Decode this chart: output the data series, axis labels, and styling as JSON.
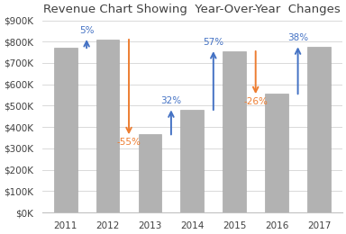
{
  "title": "Revenue Chart Showing  Year-Over-Year  Changes",
  "years": [
    2011,
    2012,
    2013,
    2014,
    2015,
    2016,
    2017
  ],
  "values": [
    770000,
    810000,
    365000,
    480000,
    755000,
    555000,
    775000
  ],
  "bar_color": "#b2b2b2",
  "bar_edge_color": "#a0a0a0",
  "ylim": [
    0,
    900000
  ],
  "yticks": [
    0,
    100000,
    200000,
    300000,
    400000,
    500000,
    600000,
    700000,
    800000,
    900000
  ],
  "ytick_labels": [
    "$0K",
    "$100K",
    "$200K",
    "$300K",
    "$400K",
    "$500K",
    "$600K",
    "$700K",
    "$800K",
    "$900K"
  ],
  "arrow_configs": [
    {
      "from_idx": 0,
      "to_idx": 1,
      "pct": "5%",
      "positive": true
    },
    {
      "from_idx": 1,
      "to_idx": 2,
      "pct": "-55%",
      "positive": false
    },
    {
      "from_idx": 2,
      "to_idx": 3,
      "pct": "32%",
      "positive": true
    },
    {
      "from_idx": 3,
      "to_idx": 4,
      "pct": "57%",
      "positive": true
    },
    {
      "from_idx": 4,
      "to_idx": 5,
      "pct": "-26%",
      "positive": false
    },
    {
      "from_idx": 5,
      "to_idx": 6,
      "pct": "38%",
      "positive": true
    }
  ],
  "positive_color": "#4472c4",
  "negative_color": "#ed7d31",
  "title_fontsize": 9.5,
  "tick_fontsize": 7.5,
  "background_color": "#ffffff",
  "grid_color": "#d3d3d3",
  "bar_width": 0.55
}
